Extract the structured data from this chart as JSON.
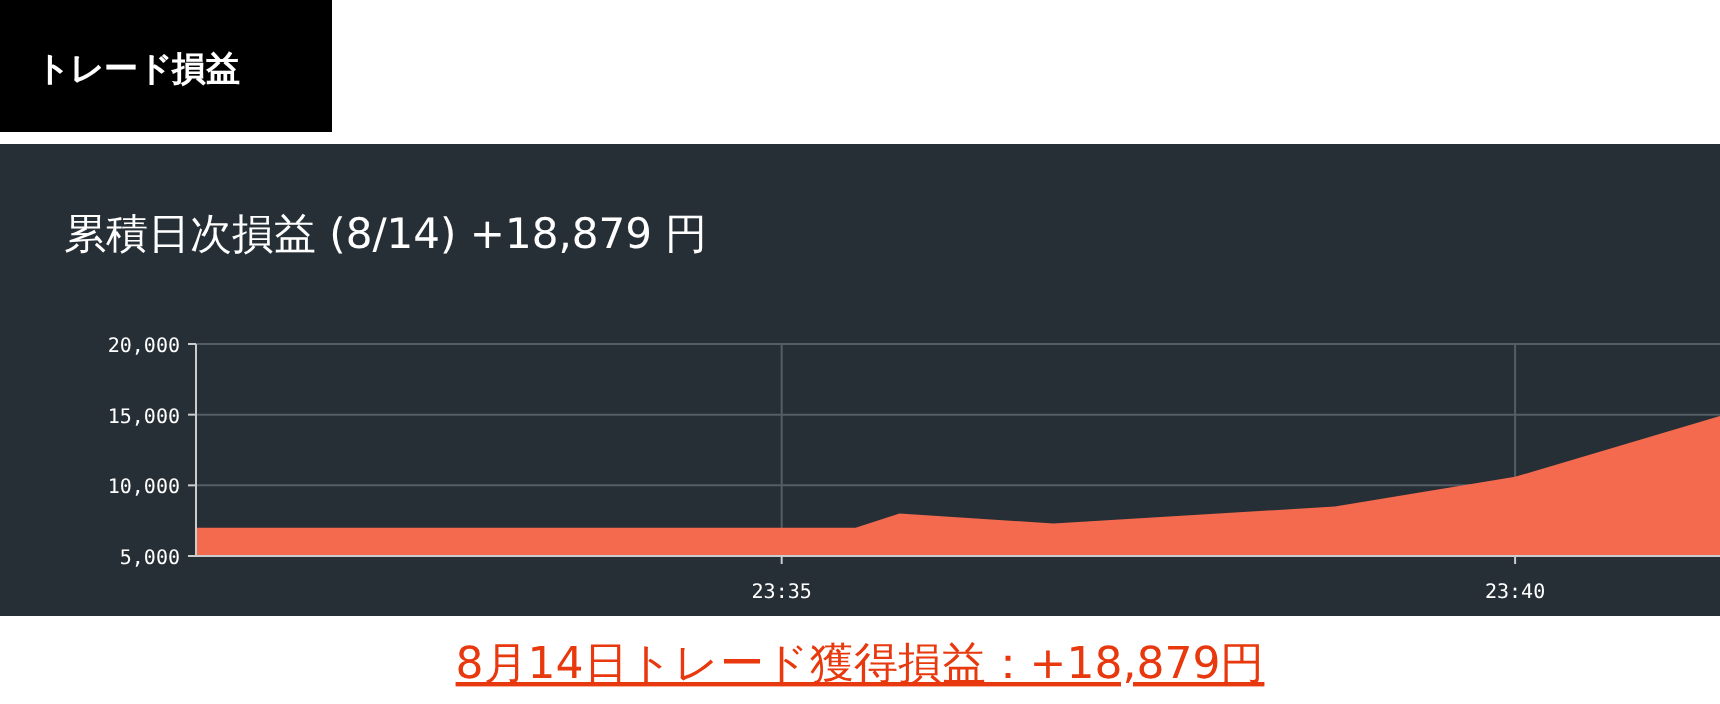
{
  "chart_data": {
    "type": "area",
    "title": "累積日次損益 (8/14) +18,879 円",
    "annotations": [
      "トレード損益",
      "8月14日トレード獲得損益：+18,879円"
    ],
    "x": [
      23.5167,
      23.5917,
      23.5967,
      23.6142,
      23.6462,
      23.6667,
      23.69
    ],
    "series": [
      {
        "color": "#f46a4e",
        "values": [
          7000,
          7000,
          8000,
          7300,
          8500,
          10600,
          14900
        ]
      }
    ],
    "xlim": [
      23.5167,
      23.69
    ],
    "xticks": [
      {
        "value": 23.5833,
        "label": "23:35"
      },
      {
        "value": 23.6667,
        "label": "23:40"
      }
    ],
    "ylim": [
      5000,
      20000
    ],
    "yticks": [
      {
        "value": 5000,
        "label": "5,000"
      },
      {
        "value": 10000,
        "label": "10,000"
      },
      {
        "value": 15000,
        "label": "15,000"
      },
      {
        "value": 20000,
        "label": "20,000"
      }
    ],
    "grid": true
  }
}
